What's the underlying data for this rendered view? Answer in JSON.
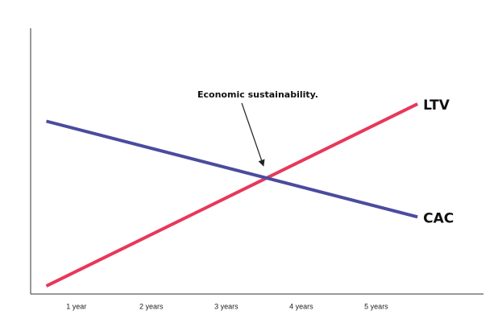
{
  "chart_data": {
    "type": "line",
    "annotation": "Economic sustainability.",
    "x": [
      0.6,
      5.55
    ],
    "xlim": [
      0.39,
      6.43
    ],
    "xticks": [
      {
        "value": 1,
        "label": "1 year"
      },
      {
        "value": 2,
        "label": "2 years"
      },
      {
        "value": 3,
        "label": "3 years"
      },
      {
        "value": 4,
        "label": "4 years"
      },
      {
        "value": 5,
        "label": "5 years"
      }
    ],
    "ylim": [
      0,
      100
    ],
    "grid": false,
    "series": [
      {
        "name": "LTV",
        "color": "#e8375a",
        "values": [
          3,
          71.5
        ]
      },
      {
        "name": "CAC",
        "color": "#4b4b9e",
        "values": [
          65,
          29
        ]
      }
    ]
  }
}
